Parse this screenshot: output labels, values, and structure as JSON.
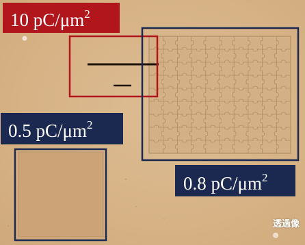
{
  "labels": {
    "dose_10": "10 pC/μm",
    "dose_0_5": "0.5 pC/μm",
    "dose_0_8": "0.8 pC/μm",
    "squared": "2",
    "transmission_image": "透過像"
  },
  "colors": {
    "background": "#d9b88f",
    "red_label": "#b0161c",
    "red_frame": "#b0161c",
    "navy_label": "#1b2951",
    "navy_frame": "#1b2951",
    "pattern_lines": "#a88a63",
    "exposed_square": "#cba377",
    "bar_mark": "#1e1408"
  }
}
